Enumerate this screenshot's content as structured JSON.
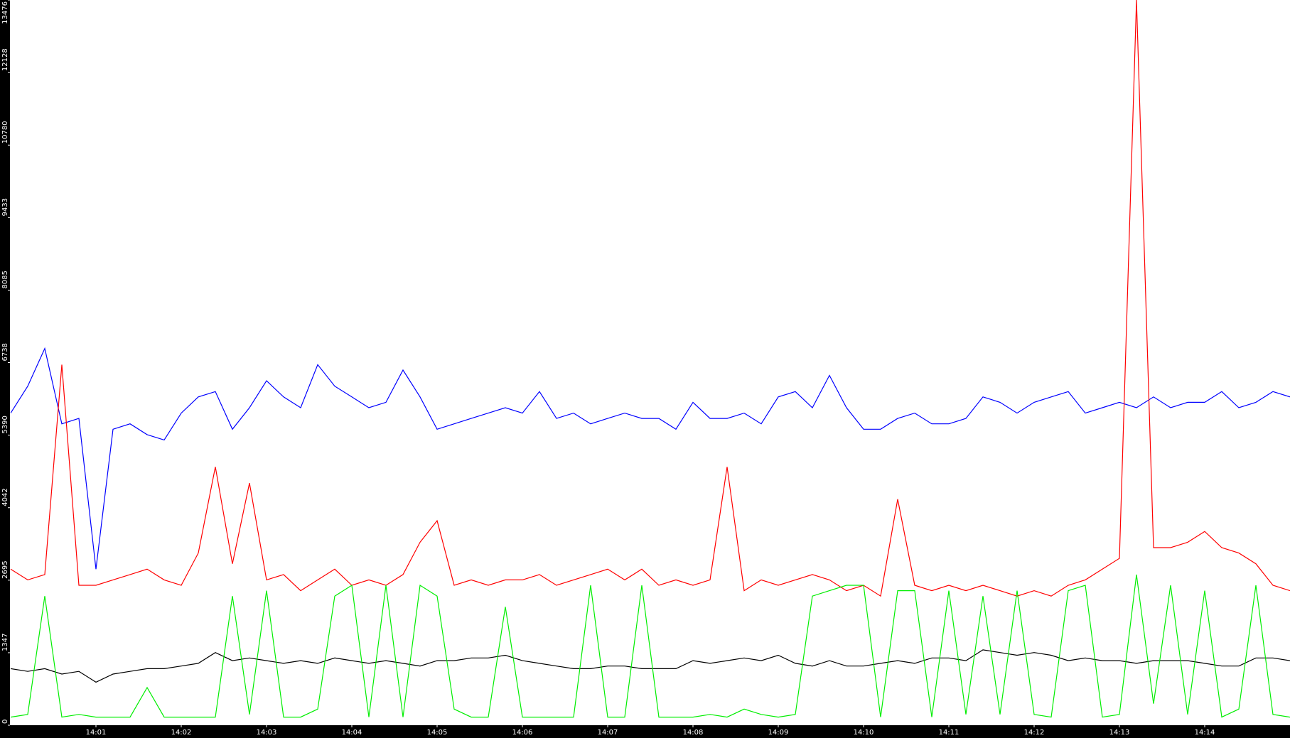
{
  "chart_data": {
    "type": "line",
    "x": [
      0,
      0.2,
      0.4,
      0.6,
      0.8,
      1,
      1.2,
      1.4,
      1.6,
      1.8,
      2,
      2.2,
      2.4,
      2.6,
      2.8,
      3,
      3.2,
      3.4,
      3.6,
      3.8,
      4,
      4.2,
      4.4,
      4.6,
      4.8,
      5,
      5.2,
      5.4,
      5.6,
      5.8,
      6,
      6.2,
      6.4,
      6.6,
      6.8,
      7,
      7.2,
      7.4,
      7.6,
      7.8,
      8,
      8.2,
      8.4,
      8.6,
      8.8,
      9,
      9.2,
      9.4,
      9.6,
      9.8,
      10,
      10.2,
      10.4,
      10.6,
      10.8,
      11,
      11.2,
      11.4,
      11.6,
      11.8,
      12,
      12.2,
      12.4,
      12.6,
      12.8,
      13,
      13.2,
      13.4,
      13.6,
      13.8,
      14,
      14.2,
      14.4,
      14.6,
      14.8,
      15
    ],
    "series": [
      {
        "color": "#0000ff",
        "values": [
          5800,
          6300,
          7000,
          5600,
          5700,
          2900,
          5500,
          5600,
          5400,
          5300,
          5800,
          6100,
          6200,
          5500,
          5900,
          6400,
          6100,
          5900,
          6700,
          6300,
          6100,
          5900,
          6000,
          6600,
          6100,
          5500,
          5600,
          5700,
          5800,
          5900,
          5800,
          6200,
          5700,
          5800,
          5600,
          5700,
          5800,
          5700,
          5700,
          5500,
          6000,
          5700,
          5700,
          5800,
          5600,
          6100,
          6200,
          5900,
          6500,
          5900,
          5500,
          5500,
          5700,
          5800,
          5600,
          5600,
          5700,
          6100,
          6000,
          5800,
          6000,
          6100,
          6200,
          5800,
          5900,
          6000,
          5900,
          6100,
          5900,
          6000,
          6000,
          6200,
          5900,
          6000,
          6200,
          6100
        ]
      },
      {
        "color": "#ff0000",
        "values": [
          2900,
          2700,
          2800,
          6700,
          2600,
          2600,
          2700,
          2800,
          2900,
          2700,
          2600,
          3200,
          4800,
          3000,
          4500,
          2700,
          2800,
          2500,
          2700,
          2900,
          2600,
          2700,
          2600,
          2800,
          3400,
          3800,
          2600,
          2700,
          2600,
          2700,
          2700,
          2800,
          2600,
          2700,
          2800,
          2900,
          2700,
          2900,
          2600,
          2700,
          2600,
          2700,
          4800,
          2500,
          2700,
          2600,
          2700,
          2800,
          2700,
          2500,
          2600,
          2400,
          4200,
          2600,
          2500,
          2600,
          2500,
          2600,
          2500,
          2400,
          2500,
          2400,
          2600,
          2700,
          2900,
          3100,
          13476,
          3300,
          3300,
          3400,
          3600,
          3300,
          3200,
          3000,
          2600,
          2500
        ]
      },
      {
        "color": "#000000",
        "values": [
          1050,
          1000,
          1050,
          950,
          1000,
          800,
          950,
          1000,
          1050,
          1050,
          1100,
          1150,
          1350,
          1200,
          1250,
          1200,
          1150,
          1200,
          1150,
          1250,
          1200,
          1150,
          1200,
          1150,
          1100,
          1200,
          1200,
          1250,
          1250,
          1300,
          1200,
          1150,
          1100,
          1050,
          1050,
          1100,
          1100,
          1050,
          1050,
          1050,
          1200,
          1150,
          1200,
          1250,
          1200,
          1300,
          1150,
          1100,
          1200,
          1100,
          1100,
          1150,
          1200,
          1150,
          1250,
          1250,
          1200,
          1400,
          1350,
          1300,
          1350,
          1300,
          1200,
          1250,
          1200,
          1200,
          1150,
          1200,
          1200,
          1200,
          1150,
          1100,
          1100,
          1250,
          1250,
          1200
        ]
      },
      {
        "color": "#00ee00",
        "values": [
          150,
          200,
          2400,
          150,
          200,
          150,
          150,
          150,
          700,
          150,
          150,
          150,
          150,
          2400,
          200,
          2500,
          150,
          150,
          300,
          2400,
          2600,
          150,
          2600,
          150,
          2600,
          2400,
          300,
          150,
          150,
          2200,
          150,
          150,
          150,
          150,
          2600,
          150,
          150,
          2600,
          150,
          150,
          150,
          200,
          150,
          300,
          200,
          150,
          200,
          2400,
          2500,
          2600,
          2600,
          150,
          2500,
          2500,
          150,
          2500,
          200,
          2400,
          200,
          2500,
          200,
          150,
          2500,
          2600,
          150,
          200,
          2800,
          400,
          2600,
          200,
          2500,
          150,
          300,
          2600,
          200,
          150
        ]
      }
    ],
    "xlim": [
      0,
      15
    ],
    "xticks": [
      {
        "value": 1,
        "label": "14:01"
      },
      {
        "value": 2,
        "label": "14:02"
      },
      {
        "value": 3,
        "label": "14:03"
      },
      {
        "value": 4,
        "label": "14:04"
      },
      {
        "value": 5,
        "label": "14:05"
      },
      {
        "value": 6,
        "label": "14:06"
      },
      {
        "value": 7,
        "label": "14:07"
      },
      {
        "value": 8,
        "label": "14:08"
      },
      {
        "value": 9,
        "label": "14:09"
      },
      {
        "value": 10,
        "label": "14:10"
      },
      {
        "value": 11,
        "label": "14:11"
      },
      {
        "value": 12,
        "label": "14:12"
      },
      {
        "value": 13,
        "label": "14:13"
      },
      {
        "value": 14,
        "label": "14:14"
      }
    ],
    "ylim": [
      0,
      13476
    ],
    "yticks": [
      0,
      1347,
      2695,
      4042,
      5390,
      6738,
      8085,
      9433,
      10780,
      12128,
      13476
    ],
    "grid": false
  }
}
